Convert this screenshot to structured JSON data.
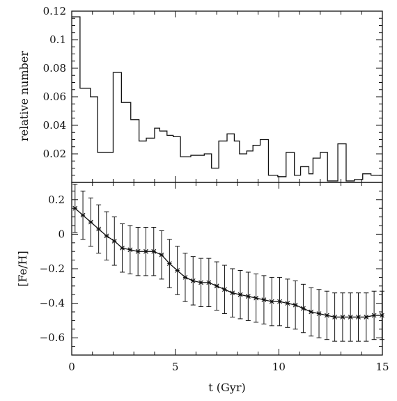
{
  "chart_data": [
    {
      "type": "line",
      "step": true,
      "ylabel": "relative number",
      "xlabel": "",
      "xlim": [
        0,
        15
      ],
      "ylim": [
        0,
        0.12
      ],
      "x_ticks": [
        0,
        5,
        10,
        15
      ],
      "y_ticks": [
        {
          "value": 0.02,
          "label": "0.02"
        },
        {
          "value": 0.04,
          "label": "0.04"
        },
        {
          "value": 0.06,
          "label": "0.06"
        },
        {
          "value": 0.08,
          "label": "0.08"
        },
        {
          "value": 0.1,
          "label": "0.1"
        },
        {
          "value": 0.12,
          "label": "0.12"
        }
      ],
      "bin_edges": [
        0,
        0.4,
        0.9,
        1.25,
        2.0,
        2.4,
        2.85,
        3.25,
        3.6,
        4.0,
        4.25,
        4.6,
        4.9,
        5.25,
        5.75,
        6.4,
        6.75,
        7.1,
        7.5,
        7.85,
        8.1,
        8.45,
        8.75,
        9.1,
        9.5,
        9.95,
        10.35,
        10.75,
        11.05,
        11.45,
        11.65,
        12.0,
        12.35,
        12.85,
        13.25,
        13.65,
        14.05,
        14.45,
        15.0
      ],
      "values": [
        0.116,
        0.066,
        0.06,
        0.021,
        0.077,
        0.056,
        0.044,
        0.029,
        0.031,
        0.038,
        0.036,
        0.033,
        0.032,
        0.018,
        0.019,
        0.02,
        0.01,
        0.029,
        0.034,
        0.029,
        0.02,
        0.022,
        0.026,
        0.03,
        0.005,
        0.004,
        0.021,
        0.005,
        0.011,
        0.006,
        0.017,
        0.021,
        0.001,
        0.027,
        0.001,
        0.002,
        0.006,
        0.005
      ]
    },
    {
      "type": "line",
      "ylabel": "[Fe/H]",
      "xlabel": "t (Gyr)",
      "xlim": [
        0,
        15
      ],
      "ylim": [
        -0.7,
        0.3
      ],
      "x_ticks": [
        {
          "value": 0,
          "label": "0"
        },
        {
          "value": 5,
          "label": "5"
        },
        {
          "value": 10,
          "label": "10"
        },
        {
          "value": 15,
          "label": "15"
        }
      ],
      "y_ticks": [
        {
          "value": -0.6,
          "label": "−0.6"
        },
        {
          "value": -0.4,
          "label": "−0.4"
        },
        {
          "value": -0.2,
          "label": "−0.2"
        },
        {
          "value": 0,
          "label": "0"
        },
        {
          "value": 0.2,
          "label": "0.2"
        }
      ],
      "error_half_width": 0.14,
      "points": [
        [
          0.16,
          0.15
        ],
        [
          0.54,
          0.11
        ],
        [
          0.92,
          0.07
        ],
        [
          1.3,
          0.03
        ],
        [
          1.68,
          -0.01
        ],
        [
          2.06,
          -0.04
        ],
        [
          2.44,
          -0.08
        ],
        [
          2.82,
          -0.09
        ],
        [
          3.2,
          -0.1
        ],
        [
          3.58,
          -0.1
        ],
        [
          3.96,
          -0.1
        ],
        [
          4.34,
          -0.12
        ],
        [
          4.72,
          -0.17
        ],
        [
          5.1,
          -0.21
        ],
        [
          5.48,
          -0.25
        ],
        [
          5.86,
          -0.27
        ],
        [
          6.24,
          -0.28
        ],
        [
          6.62,
          -0.28
        ],
        [
          7.0,
          -0.3
        ],
        [
          7.38,
          -0.32
        ],
        [
          7.76,
          -0.34
        ],
        [
          8.14,
          -0.35
        ],
        [
          8.52,
          -0.36
        ],
        [
          8.9,
          -0.37
        ],
        [
          9.28,
          -0.38
        ],
        [
          9.66,
          -0.39
        ],
        [
          10.04,
          -0.39
        ],
        [
          10.42,
          -0.4
        ],
        [
          10.8,
          -0.41
        ],
        [
          11.18,
          -0.43
        ],
        [
          11.56,
          -0.45
        ],
        [
          11.94,
          -0.46
        ],
        [
          12.32,
          -0.47
        ],
        [
          12.7,
          -0.48
        ],
        [
          13.08,
          -0.48
        ],
        [
          13.46,
          -0.48
        ],
        [
          13.84,
          -0.48
        ],
        [
          14.22,
          -0.48
        ],
        [
          14.6,
          -0.47
        ],
        [
          14.98,
          -0.47
        ]
      ]
    }
  ]
}
